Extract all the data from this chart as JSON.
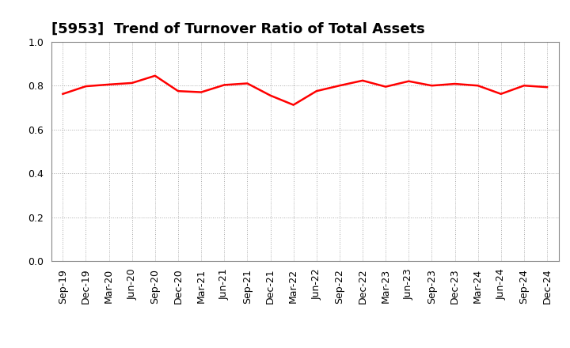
{
  "title": "[5953]  Trend of Turnover Ratio of Total Assets",
  "labels": [
    "Sep-19",
    "Dec-19",
    "Mar-20",
    "Jun-20",
    "Sep-20",
    "Dec-20",
    "Mar-21",
    "Jun-21",
    "Sep-21",
    "Dec-21",
    "Mar-22",
    "Jun-22",
    "Sep-22",
    "Dec-22",
    "Mar-23",
    "Jun-23",
    "Sep-23",
    "Dec-23",
    "Mar-24",
    "Jun-24",
    "Sep-24",
    "Dec-24"
  ],
  "values": [
    0.762,
    0.797,
    0.805,
    0.812,
    0.845,
    0.775,
    0.77,
    0.803,
    0.81,
    0.755,
    0.712,
    0.775,
    0.8,
    0.823,
    0.795,
    0.82,
    0.8,
    0.808,
    0.8,
    0.762,
    0.8,
    0.793
  ],
  "line_color": "#FF0000",
  "line_width": 1.8,
  "ylim": [
    0.0,
    1.0
  ],
  "yticks": [
    0.0,
    0.2,
    0.4,
    0.6,
    0.8,
    1.0
  ],
  "grid_color": "#aaaaaa",
  "background_color": "#FFFFFF",
  "title_fontsize": 13,
  "tick_fontsize": 9
}
